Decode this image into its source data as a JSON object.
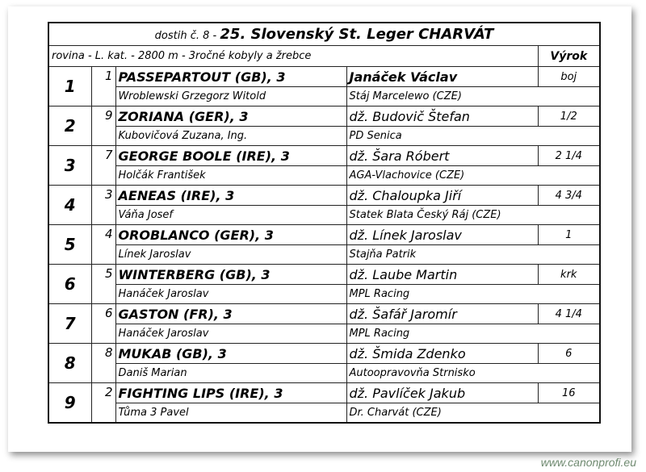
{
  "race": {
    "prefix": "dostih č. 8 -",
    "name": "25. Slovenský St. Leger CHARVÁT",
    "conditions": "rovina - L. kat. - 2800 m - 3ročné kobyly a žrebce",
    "verdict_header": "Výrok"
  },
  "entries": [
    {
      "place": "1",
      "number": "1",
      "horse": "PASSEPARTOUT (GB), 3",
      "jockey": "Janáček Václav",
      "margin": "boj",
      "trainer": "Wroblewski Grzegorz Witold",
      "owner": "Stáj Marcelewo (CZE)"
    },
    {
      "place": "2",
      "number": "9",
      "horse": "ZORIANA (GER), 3",
      "jockey": "dž. Budovič Štefan",
      "margin": "1/2",
      "trainer": "Kubovičová Zuzana, Ing.",
      "owner": "PD Senica"
    },
    {
      "place": "3",
      "number": "7",
      "horse": "GEORGE BOOLE (IRE), 3",
      "jockey": "dž. Šara Róbert",
      "margin": "2 1/4",
      "trainer": "Holčák František",
      "owner": "AGA-Vlachovice (CZE)"
    },
    {
      "place": "4",
      "number": "3",
      "horse": "AENEAS (IRE), 3",
      "jockey": "dž. Chaloupka Jiří",
      "margin": "4 3/4",
      "trainer": "Váňa Josef",
      "owner": "Statek Blata Český Ráj (CZE)"
    },
    {
      "place": "5",
      "number": "4",
      "horse": "OROBLANCO (GER), 3",
      "jockey": "dž. Línek Jaroslav",
      "margin": "1",
      "trainer": "Línek Jaroslav",
      "owner": "Stajňa Patrik"
    },
    {
      "place": "6",
      "number": "5",
      "horse": "WINTERBERG (GB), 3",
      "jockey": "dž. Laube Martin",
      "margin": "krk",
      "trainer": "Hanáček Jaroslav",
      "owner": "MPL Racing"
    },
    {
      "place": "7",
      "number": "6",
      "horse": "GASTON (FR), 3",
      "jockey": "dž. Šafář Jaromír",
      "margin": "4 1/4",
      "trainer": "Hanáček Jaroslav",
      "owner": "MPL Racing"
    },
    {
      "place": "8",
      "number": "8",
      "horse": "MUKAB (GB), 3",
      "jockey": "dž. Šmida Zdenko",
      "margin": "6",
      "trainer": "Daniš Marian",
      "owner": "Autoopravovňa Strnisko"
    },
    {
      "place": "9",
      "number": "2",
      "horse": "FIGHTING LIPS (IRE), 3",
      "jockey": "dž. Pavlíček Jakub",
      "margin": "16",
      "trainer": "Tůma 3 Pavel",
      "owner": "Dr. Charvát (CZE)"
    }
  ],
  "watermark": "www.canonprofi.eu"
}
